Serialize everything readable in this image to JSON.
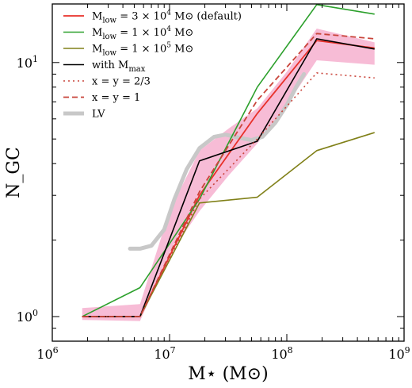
{
  "chart_data": {
    "type": "line",
    "xlabel": "M⋆ (M⊙)",
    "ylabel": "N_GC",
    "x_scale": "log",
    "y_scale": "log",
    "xlim": [
      1000000,
      1000000000
    ],
    "ylim": [
      0.8,
      17
    ],
    "x_ticks": [
      {
        "value": 1000000,
        "base": "10",
        "exp": "6"
      },
      {
        "value": 10000000,
        "base": "10",
        "exp": "7"
      },
      {
        "value": 100000000,
        "base": "10",
        "exp": "8"
      },
      {
        "value": 1000000000,
        "base": "10",
        "exp": "9"
      }
    ],
    "y_ticks": [
      {
        "value": 1,
        "base": "10",
        "exp": "0"
      },
      {
        "value": 10,
        "base": "10",
        "exp": "1"
      }
    ],
    "legend_position": "top-left",
    "band": {
      "color": "#f4a6c8",
      "x": [
        1800000,
        5600000,
        10000000,
        18000000,
        32000000,
        56000000,
        100000000,
        180000000,
        560000000
      ],
      "lower": [
        0.97,
        0.96,
        1.75,
        2.6,
        3.6,
        4.8,
        6.8,
        10.2,
        9.8
      ],
      "upper": [
        1.08,
        1.12,
        2.6,
        4.5,
        5.5,
        6.6,
        9.2,
        13.6,
        12.0
      ]
    },
    "series": [
      {
        "name": "M_low = 3 × 10^4 M⊙ (default)",
        "color": "#e8312a",
        "dash": "solid",
        "width": 1.8,
        "x": [
          1800000,
          5600000,
          18000000,
          56000000,
          180000000,
          560000000
        ],
        "y": [
          1.0,
          1.0,
          3.0,
          6.3,
          12.2,
          11.4
        ]
      },
      {
        "name": "M_low = 1 × 10^4 M⊙",
        "color": "#2ca02c",
        "dash": "solid",
        "width": 1.6,
        "x": [
          1800000,
          5600000,
          18000000,
          56000000,
          180000000,
          560000000
        ],
        "y": [
          1.0,
          1.3,
          2.9,
          8.0,
          16.9,
          15.5
        ]
      },
      {
        "name": "M_low = 1 × 10^5 M⊙",
        "color": "#808018",
        "dash": "solid",
        "width": 1.6,
        "x": [
          1800000,
          5600000,
          18000000,
          56000000,
          180000000,
          560000000
        ],
        "y": [
          1.0,
          1.0,
          2.8,
          2.95,
          4.5,
          5.3
        ]
      },
      {
        "name": "with M_max",
        "color": "#000000",
        "dash": "solid",
        "width": 1.6,
        "x": [
          1800000,
          5600000,
          18000000,
          56000000,
          180000000,
          560000000
        ],
        "y": [
          1.0,
          1.0,
          4.1,
          4.9,
          12.4,
          11.3
        ]
      },
      {
        "name": "x = y = 2/3",
        "color": "#c9443a",
        "dash": "dotted",
        "width": 1.6,
        "x": [
          1800000,
          5600000,
          18000000,
          56000000,
          180000000,
          560000000
        ],
        "y": [
          1.0,
          1.0,
          2.9,
          5.0,
          9.1,
          8.7
        ]
      },
      {
        "name": "x = y = 1",
        "color": "#c9443a",
        "dash": "dashed",
        "width": 1.8,
        "x": [
          1800000,
          5600000,
          18000000,
          56000000,
          180000000,
          560000000
        ],
        "y": [
          1.0,
          1.0,
          3.1,
          7.1,
          13.0,
          12.4
        ]
      },
      {
        "name": "LV",
        "color": "#c8c8c8",
        "dash": "solid",
        "width": 5,
        "x": [
          4600000,
          5600000,
          7000000,
          9000000,
          11000000,
          14000000,
          18000000,
          24000000,
          30000000,
          40000000,
          50000000,
          62000000,
          80000000,
          100000000,
          120000000,
          140000000
        ],
        "y": [
          1.85,
          1.85,
          1.9,
          2.2,
          2.9,
          3.8,
          4.6,
          5.1,
          5.2,
          5.05,
          4.95,
          5.1,
          5.8,
          6.8,
          8.0,
          9.0
        ]
      }
    ],
    "legend": [
      {
        "color": "#e8312a",
        "dash": "solid",
        "width": 1.8,
        "main": "M",
        "sub": "low",
        "rest": " = 3 × 10",
        "sup": "4",
        "tail": " M⊙ (default)"
      },
      {
        "color": "#2ca02c",
        "dash": "solid",
        "width": 1.6,
        "main": "M",
        "sub": "low",
        "rest": " = 1 × 10",
        "sup": "4",
        "tail": " M⊙"
      },
      {
        "color": "#808018",
        "dash": "solid",
        "width": 1.6,
        "main": "M",
        "sub": "low",
        "rest": " = 1 × 10",
        "sup": "5",
        "tail": " M⊙"
      },
      {
        "color": "#000000",
        "dash": "solid",
        "width": 1.6,
        "main": "with M",
        "sub": "max",
        "rest": "",
        "sup": "",
        "tail": ""
      },
      {
        "color": "#c9443a",
        "dash": "dotted",
        "width": 1.6,
        "main": "x = y = 2/3",
        "sub": "",
        "rest": "",
        "sup": "",
        "tail": ""
      },
      {
        "color": "#c9443a",
        "dash": "dashed",
        "width": 1.8,
        "main": "x = y = 1",
        "sub": "",
        "rest": "",
        "sup": "",
        "tail": ""
      },
      {
        "color": "#c8c8c8",
        "dash": "solid",
        "width": 5,
        "main": "LV",
        "sub": "",
        "rest": "",
        "sup": "",
        "tail": ""
      }
    ]
  }
}
